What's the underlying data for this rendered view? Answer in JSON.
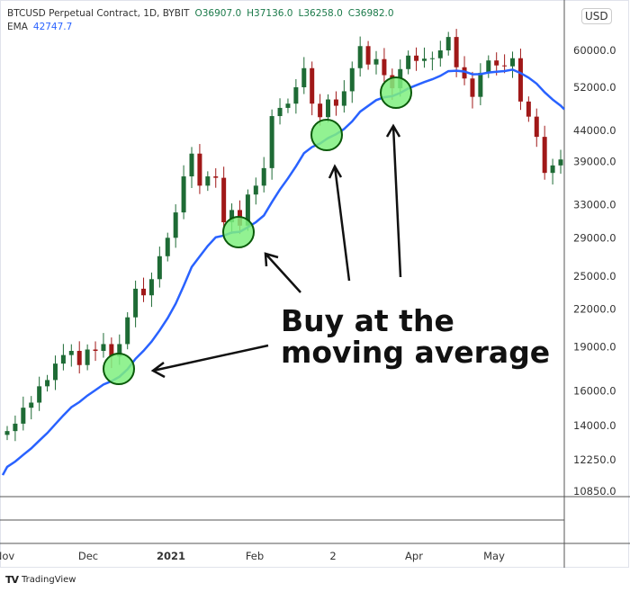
{
  "header": {
    "symbol": "BTCUSD Perpetual Contract, 1D, BYBIT",
    "open": "O36907.0",
    "high": "H37136.0",
    "low": "L36258.0",
    "close": "C36982.0",
    "ema_label": "EMA",
    "ema_value": "42747.7",
    "currency": "USD"
  },
  "brand": "TradingView",
  "annotation": {
    "line1": "Buy at the",
    "line2": "moving average"
  },
  "colors": {
    "up": "#1e6b35",
    "down": "#a01818",
    "ema": "#2962ff",
    "circle_fill": "#7ff07f",
    "circle_stroke": "#0a5a0a"
  },
  "chart_data": {
    "type": "candlestick",
    "scale": "log",
    "ylim": [
      10850,
      66000
    ],
    "y_ticks": [
      "60000.0",
      "52000.0",
      "44000.0",
      "39000.0",
      "33000.0",
      "29000.0",
      "25000.0",
      "22000.0",
      "19000.0",
      "16000.0",
      "14000.0",
      "12250.0",
      "10850.0"
    ],
    "x_ticks": [
      "Nov",
      "Dec",
      "2021",
      "Feb",
      "2",
      "Apr",
      "May"
    ],
    "x": [
      "2020-11-01",
      "2021-05-26"
    ],
    "closes": [
      13700,
      14100,
      15000,
      15300,
      16300,
      16700,
      17800,
      18400,
      18700,
      17700,
      18800,
      18700,
      19200,
      18300,
      19200,
      21300,
      23800,
      23200,
      24700,
      27000,
      29000,
      32000,
      36800,
      40200,
      35500,
      36800,
      36600,
      30800,
      32300,
      30400,
      34300,
      35500,
      38000,
      46500,
      48000,
      48800,
      52000,
      56000,
      48800,
      46300,
      49600,
      48400,
      51200,
      56000,
      61000,
      56800,
      58000,
      54500,
      51800,
      55800,
      58800,
      57600,
      58100,
      58200,
      60000,
      63200,
      56200,
      53800,
      50100,
      55000,
      57700,
      56600,
      56400,
      58200,
      49200,
      46400,
      42900,
      37300,
      38400,
      39300
    ],
    "series": [
      {
        "name": "EMA",
        "type": "line"
      }
    ]
  }
}
